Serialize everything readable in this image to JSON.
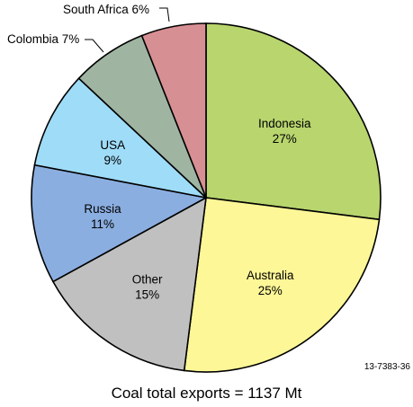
{
  "chart_data": {
    "type": "pie",
    "title": "",
    "caption": "Coal total exports = 1137 Mt",
    "figure_id": "13-7383-36",
    "unit": "%",
    "start": "12 o'clock",
    "direction": "clockwise",
    "slices": [
      {
        "name": "Indonesia",
        "value": 27,
        "value_label": "27%",
        "color": "#b8d56e",
        "label_style": "inside"
      },
      {
        "name": "Australia",
        "value": 25,
        "value_label": "25%",
        "color": "#fdf797",
        "label_style": "inside"
      },
      {
        "name": "Other",
        "value": 15,
        "value_label": "15%",
        "color": "#c0c0c0",
        "label_style": "inside"
      },
      {
        "name": "Russia",
        "value": 11,
        "value_label": "11%",
        "color": "#8baee0",
        "label_style": "inside"
      },
      {
        "name": "USA",
        "value": 9,
        "value_label": "9%",
        "color": "#9fdcf8",
        "label_style": "inside"
      },
      {
        "name": "Colombia",
        "value": 7,
        "value_label": "7%",
        "color": "#9fb5a2",
        "label_style": "outside",
        "outside_label": "Colombia 7%"
      },
      {
        "name": "South Africa",
        "value": 6,
        "value_label": "6%",
        "color": "#d68f93",
        "label_style": "outside",
        "outside_label": "South Africa 6%"
      }
    ]
  }
}
